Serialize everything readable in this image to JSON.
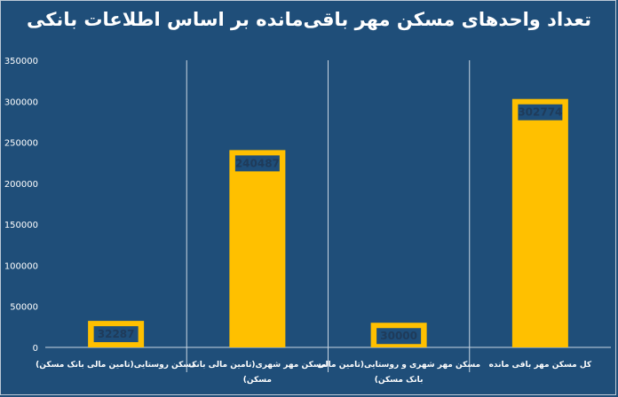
{
  "chart_data": {
    "type": "bar",
    "title": "تعداد واحدهای مسکن مهر باقی‌مانده بر اساس اطلاعات بانکی",
    "categories": [
      [
        "مسکن روستایی(تامین مالی بانک مسکن)"
      ],
      [
        "مسکن مهر شهری(تامین مالی بانک",
        "مسکن)"
      ],
      [
        "مسکن مهر شهری و روستایی(تامین مالی",
        "بانک مسکن)"
      ],
      [
        "کل مسکن مهر باقی مانده"
      ]
    ],
    "values": [
      32287,
      240487,
      30000,
      302774
    ],
    "ylim": [
      0,
      350000
    ],
    "yticks": [
      0,
      50000,
      100000,
      150000,
      200000,
      250000,
      300000,
      350000
    ],
    "bar_color": "#ffc000",
    "label_box_color": "#1f4e79",
    "grid": false,
    "legend": "none"
  }
}
